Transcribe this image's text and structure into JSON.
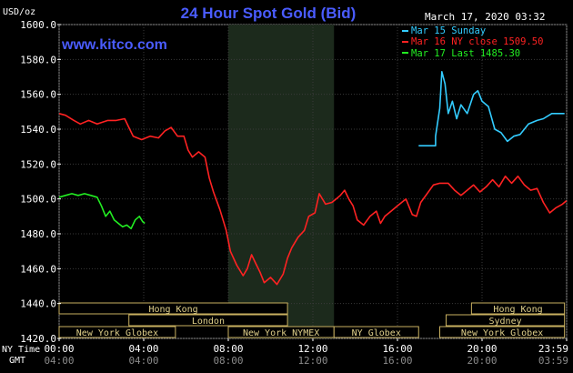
{
  "header": {
    "unit": "USD/oz",
    "title": "24 Hour Spot Gold (Bid)",
    "date": "March 17, 2020 03:32",
    "site": "www.kitco.com"
  },
  "legend": [
    {
      "label": "Mar 15 Sunday",
      "color": "#33ccff"
    },
    {
      "label": "Mar 16 NY close 1509.50",
      "color": "#ff2222"
    },
    {
      "label": "Mar 17 Last 1485.30",
      "color": "#22ee22"
    }
  ],
  "sessions": {
    "row1": [
      {
        "label": "Hong Kong",
        "from": 0,
        "to": 10.8
      },
      {
        "label": "Hong Kong",
        "from": 19.5,
        "to": 23.9
      }
    ],
    "row2": [
      {
        "label": "London",
        "from": 3.3,
        "to": 10.8
      },
      {
        "label": "Sydney",
        "from": 18.3,
        "to": 23.9
      }
    ],
    "row3": [
      {
        "label": "New York Globex",
        "from": 0,
        "to": 5.5
      },
      {
        "label": "New York NYMEX",
        "from": 8.0,
        "to": 13.0
      },
      {
        "label": "NY Globex",
        "from": 13.0,
        "to": 17.0
      },
      {
        "label": "New York Globex",
        "from": 18.0,
        "to": 23.9
      }
    ]
  },
  "axis_labels": {
    "ny_time": "NY Time",
    "gmt": "GMT"
  },
  "gmt_ticks": [
    "04:00",
    "08:00",
    "12:00",
    "16:00",
    "20:00",
    "03:59"
  ],
  "chart_data": {
    "type": "line",
    "title": "24 Hour Spot Gold (Bid)",
    "ylabel": "USD/oz",
    "ylim": [
      1420,
      1600
    ],
    "yticks": [
      1420,
      1440,
      1460,
      1480,
      1500,
      1520,
      1540,
      1560,
      1580,
      1600
    ],
    "ytick_labels": [
      "1420.0",
      "1440.0",
      "1460.0",
      "1480.0",
      "1500.0",
      "1520.0",
      "1540.0",
      "1560.0",
      "1580.0",
      "1600.0"
    ],
    "xlim": [
      0,
      24
    ],
    "xticks": [
      0,
      4,
      8,
      12,
      16,
      20,
      24
    ],
    "xtick_labels": [
      "00:00",
      "04:00",
      "08:00",
      "12:00",
      "16:00",
      "20:00",
      "23:59"
    ],
    "shaded_region": [
      8.0,
      13.0
    ],
    "grid": true,
    "series": [
      {
        "name": "Mar 15 Sunday",
        "color": "#33ccff",
        "points": [
          [
            17.0,
            1530.5
          ],
          [
            17.8,
            1530.5
          ],
          [
            17.8,
            1536
          ],
          [
            18.0,
            1552
          ],
          [
            18.1,
            1573
          ],
          [
            18.25,
            1566
          ],
          [
            18.4,
            1549
          ],
          [
            18.6,
            1556
          ],
          [
            18.8,
            1546
          ],
          [
            19.0,
            1554
          ],
          [
            19.3,
            1549
          ],
          [
            19.6,
            1560
          ],
          [
            19.8,
            1562
          ],
          [
            20.0,
            1556
          ],
          [
            20.3,
            1553
          ],
          [
            20.6,
            1540
          ],
          [
            20.9,
            1538
          ],
          [
            21.2,
            1533
          ],
          [
            21.5,
            1536
          ],
          [
            21.8,
            1537
          ],
          [
            22.2,
            1543
          ],
          [
            22.6,
            1545
          ],
          [
            22.9,
            1546
          ],
          [
            23.3,
            1549
          ],
          [
            23.6,
            1549
          ],
          [
            23.9,
            1549
          ]
        ]
      },
      {
        "name": "Mar 16 NY close 1509.50",
        "color": "#ff2222",
        "points": [
          [
            0,
            1549
          ],
          [
            0.3,
            1548
          ],
          [
            0.7,
            1545
          ],
          [
            1.0,
            1543
          ],
          [
            1.4,
            1545
          ],
          [
            1.8,
            1543
          ],
          [
            2.3,
            1545
          ],
          [
            2.7,
            1545
          ],
          [
            3.1,
            1546
          ],
          [
            3.3,
            1541
          ],
          [
            3.5,
            1536
          ],
          [
            3.9,
            1534
          ],
          [
            4.3,
            1536
          ],
          [
            4.7,
            1535
          ],
          [
            5.0,
            1539
          ],
          [
            5.3,
            1541
          ],
          [
            5.6,
            1536
          ],
          [
            5.9,
            1536
          ],
          [
            6.1,
            1528
          ],
          [
            6.3,
            1524
          ],
          [
            6.6,
            1527
          ],
          [
            6.9,
            1524
          ],
          [
            7.1,
            1512
          ],
          [
            7.3,
            1504
          ],
          [
            7.6,
            1494
          ],
          [
            7.9,
            1482
          ],
          [
            8.1,
            1470
          ],
          [
            8.4,
            1462
          ],
          [
            8.7,
            1456
          ],
          [
            8.9,
            1460
          ],
          [
            9.1,
            1468
          ],
          [
            9.3,
            1463
          ],
          [
            9.5,
            1458
          ],
          [
            9.7,
            1452
          ],
          [
            10.0,
            1455
          ],
          [
            10.3,
            1451
          ],
          [
            10.6,
            1457
          ],
          [
            10.8,
            1466
          ],
          [
            11.0,
            1472
          ],
          [
            11.3,
            1478
          ],
          [
            11.6,
            1482
          ],
          [
            11.8,
            1490
          ],
          [
            12.1,
            1492
          ],
          [
            12.3,
            1503
          ],
          [
            12.6,
            1497
          ],
          [
            12.9,
            1498
          ],
          [
            13.1,
            1500
          ],
          [
            13.3,
            1502
          ],
          [
            13.5,
            1505
          ],
          [
            13.7,
            1500
          ],
          [
            13.9,
            1496
          ],
          [
            14.1,
            1488
          ],
          [
            14.4,
            1485
          ],
          [
            14.7,
            1490
          ],
          [
            15.0,
            1493
          ],
          [
            15.2,
            1486
          ],
          [
            15.4,
            1490
          ],
          [
            15.7,
            1493
          ],
          [
            16.0,
            1496
          ],
          [
            16.4,
            1500
          ],
          [
            16.7,
            1491
          ],
          [
            16.9,
            1490
          ],
          [
            17.1,
            1498
          ],
          [
            17.4,
            1503
          ],
          [
            17.7,
            1508
          ],
          [
            18.0,
            1509
          ],
          [
            18.4,
            1509
          ],
          [
            18.7,
            1505
          ],
          [
            19.0,
            1502
          ],
          [
            19.3,
            1505
          ],
          [
            19.6,
            1508
          ],
          [
            19.9,
            1504
          ],
          [
            20.2,
            1507
          ],
          [
            20.5,
            1511
          ],
          [
            20.8,
            1507
          ],
          [
            21.1,
            1513
          ],
          [
            21.4,
            1509
          ],
          [
            21.7,
            1513
          ],
          [
            22.0,
            1508
          ],
          [
            22.3,
            1505
          ],
          [
            22.6,
            1506
          ],
          [
            22.9,
            1498
          ],
          [
            23.2,
            1492
          ],
          [
            23.5,
            1495
          ],
          [
            23.8,
            1497
          ],
          [
            23.99,
            1499
          ]
        ]
      },
      {
        "name": "Mar 17 Last 1485.30",
        "color": "#22ee22",
        "points": [
          [
            0,
            1501
          ],
          [
            0.3,
            1502
          ],
          [
            0.6,
            1503
          ],
          [
            0.9,
            1502
          ],
          [
            1.2,
            1503
          ],
          [
            1.5,
            1502
          ],
          [
            1.8,
            1501
          ],
          [
            2.0,
            1496
          ],
          [
            2.2,
            1490
          ],
          [
            2.4,
            1493
          ],
          [
            2.6,
            1488
          ],
          [
            2.8,
            1486
          ],
          [
            3.0,
            1484
          ],
          [
            3.2,
            1485
          ],
          [
            3.4,
            1483
          ],
          [
            3.6,
            1488
          ],
          [
            3.8,
            1490
          ],
          [
            3.95,
            1487
          ],
          [
            4.05,
            1486
          ]
        ]
      }
    ]
  }
}
